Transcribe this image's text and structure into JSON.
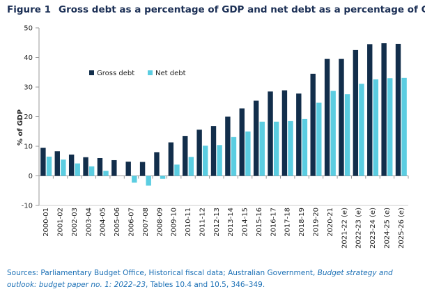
{
  "figure": {
    "number": "Figure 1",
    "title": "Gross debt as a percentage of GDP and net debt as a percentage of GDP"
  },
  "source": {
    "prefix": "Sources: Parliamentary Budget Office, Historical fiscal data; Australian Government, ",
    "italic": "Budget strategy and outlook: budget paper no. 1: 2022–23",
    "suffix": ", Tables 10.4 and 10.5, 346–349."
  },
  "colors": {
    "gross": "#122e4b",
    "net": "#5bcde1",
    "axis": "#999999",
    "grid": "#cccccc",
    "text": "#222222"
  },
  "chart_data": {
    "type": "bar",
    "ylabel": "% of GDP",
    "ylim": [
      -10,
      50
    ],
    "yticks": [
      -10,
      0,
      10,
      20,
      30,
      40,
      50
    ],
    "grid": false,
    "legend_position": "top-left",
    "categories": [
      "2000-01",
      "2001-02",
      "2002-03",
      "2003-04",
      "2004-05",
      "2005-06",
      "2006-07",
      "2007-08",
      "2008-09",
      "2009-10",
      "2010-11",
      "2011-12",
      "2012-13",
      "2013-14",
      "2014-15",
      "2015-16",
      "2016-17",
      "2017-18",
      "2018-19",
      "2019-20",
      "2020-21",
      "2021-22 (e)",
      "2022-23 (e)",
      "2023-24 (e)",
      "2024-25 (e)",
      "2025-26 (e)"
    ],
    "series": [
      {
        "name": "Gross debt",
        "values": [
          9.5,
          8.3,
          7.2,
          6.3,
          6.0,
          5.3,
          4.8,
          4.7,
          8.0,
          11.3,
          13.5,
          15.6,
          16.8,
          20.0,
          22.8,
          25.4,
          28.5,
          28.9,
          27.8,
          34.5,
          39.5,
          39.5,
          42.5,
          44.5,
          44.8,
          44.6
        ]
      },
      {
        "name": "Net debt",
        "values": [
          6.5,
          5.5,
          4.2,
          3.2,
          1.7,
          0,
          -2.3,
          -3.3,
          -1.0,
          3.8,
          6.4,
          10.2,
          10.4,
          13.1,
          15.0,
          18.3,
          18.3,
          18.5,
          19.2,
          24.7,
          28.7,
          27.6,
          31.1,
          32.6,
          33.0,
          33.1
        ]
      }
    ]
  }
}
